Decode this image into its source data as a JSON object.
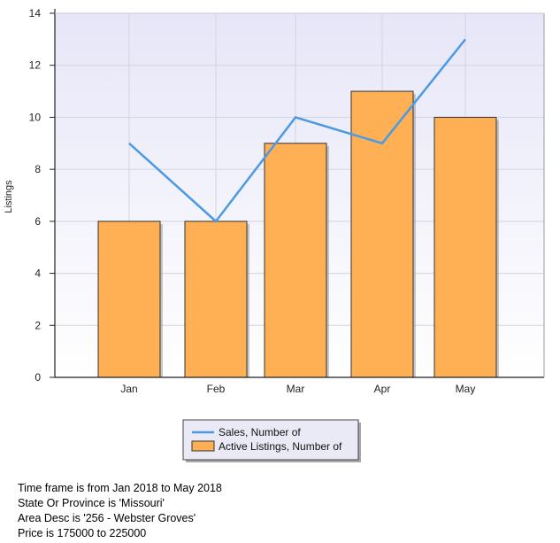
{
  "chart_data": {
    "type": "bar",
    "categories": [
      "Jan",
      "Feb",
      "Mar",
      "Apr",
      "May"
    ],
    "series": [
      {
        "name": "Active Listings, Number of",
        "type": "bar",
        "values": [
          6,
          6,
          9,
          11,
          10
        ],
        "color": "#FFB055"
      },
      {
        "name": "Sales, Number of",
        "type": "line",
        "values": [
          9,
          6,
          10,
          9,
          13
        ],
        "color": "#4A9AE6"
      }
    ],
    "ylabel": "Listings",
    "ylim": [
      0,
      14
    ],
    "yticks": [
      0,
      2,
      4,
      6,
      8,
      10,
      12,
      14
    ],
    "grid": true,
    "legend_position": "bottom-center",
    "colors": {
      "plot_background_top": "#E6E6F8",
      "plot_background_bottom": "#FFFFFF",
      "bar_border": "#333333",
      "legend_background": "#EAEAF6"
    }
  },
  "notes": [
    "Time frame is from Jan 2018 to May 2018",
    "State Or Province is 'Missouri'",
    "Area Desc is '256 - Webster Groves'",
    "Price is 175000 to 225000"
  ]
}
